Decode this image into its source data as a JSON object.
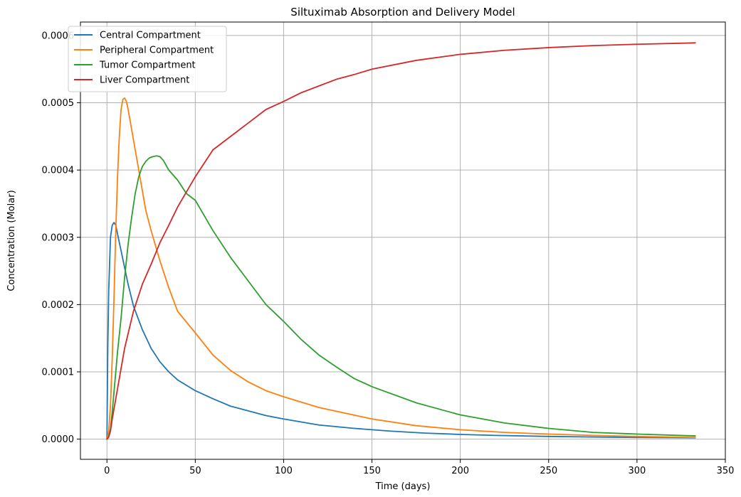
{
  "chart_data": {
    "type": "line",
    "title": "Siltuximab Absorption and Delivery Model",
    "xlabel": "Time (days)",
    "ylabel": "Concentration (Molar)",
    "xlim": [
      -15,
      350
    ],
    "ylim": [
      -3e-05,
      0.00062
    ],
    "xticks": [
      0,
      50,
      100,
      150,
      200,
      250,
      300,
      350
    ],
    "xtick_labels": [
      "0",
      "50",
      "100",
      "150",
      "200",
      "250",
      "300",
      "350"
    ],
    "yticks": [
      0,
      0.0001,
      0.0002,
      0.0003,
      0.0004,
      0.0005,
      0.0006
    ],
    "ytick_labels": [
      "0.0000",
      "0.0001",
      "0.0002",
      "0.0003",
      "0.0004",
      "0.0005",
      "0.0006"
    ],
    "grid": true,
    "legend_position": "top-left",
    "series": [
      {
        "name": "Central Compartment",
        "color": "#1f77b4",
        "x": [
          0,
          0.5,
          1,
          2,
          3,
          4,
          5,
          6,
          8,
          10,
          12,
          15,
          20,
          25,
          30,
          35,
          40,
          50,
          60,
          70,
          80,
          90,
          100,
          120,
          140,
          160,
          180,
          200,
          220,
          250,
          280,
          300,
          333
        ],
        "y": [
          0,
          0.00014,
          0.00022,
          0.0003,
          0.000318,
          0.000322,
          0.000318,
          0.000305,
          0.00028,
          0.000255,
          0.00023,
          0.000198,
          0.000163,
          0.000135,
          0.000115,
          0.0001,
          8.8e-05,
          7.2e-05,
          6e-05,
          4.9e-05,
          4.2e-05,
          3.5e-05,
          3e-05,
          2.1e-05,
          1.6e-05,
          1.2e-05,
          9e-06,
          7e-06,
          5.5e-06,
          4e-06,
          3e-06,
          2.5e-06,
          2e-06
        ]
      },
      {
        "name": "Peripheral Compartment",
        "color": "#ff7f0e",
        "x": [
          0,
          1,
          2,
          3,
          4,
          5,
          6,
          7,
          8,
          9,
          10,
          11,
          12,
          14,
          16,
          18,
          20,
          22,
          25,
          30,
          35,
          40,
          50,
          60,
          70,
          80,
          90,
          100,
          120,
          150,
          175,
          200,
          225,
          250,
          275,
          300,
          333
        ],
        "y": [
          0,
          1.2e-05,
          5e-05,
          0.00012,
          0.00021,
          0.00031,
          0.00039,
          0.00045,
          0.00049,
          0.000505,
          0.000507,
          0.000502,
          0.00049,
          0.00046,
          0.00043,
          0.0004,
          0.00037,
          0.00034,
          0.00031,
          0.000265,
          0.000225,
          0.00019,
          0.000158,
          0.000125,
          0.000102,
          8.5e-05,
          7.2e-05,
          6.3e-05,
          4.7e-05,
          3e-05,
          2e-05,
          1.4e-05,
          1e-05,
          7.5e-06,
          5.5e-06,
          4e-06,
          2.5e-06
        ]
      },
      {
        "name": "Tumor Compartment",
        "color": "#2ca02c",
        "x": [
          0,
          1,
          2,
          3,
          4,
          5,
          6,
          8,
          10,
          12,
          14,
          16,
          18,
          20,
          22,
          24,
          26,
          28,
          30,
          32,
          35,
          40,
          45,
          50,
          60,
          70,
          80,
          90,
          100,
          110,
          120,
          130,
          140,
          150,
          175,
          200,
          225,
          250,
          275,
          300,
          333
        ],
        "y": [
          0,
          4e-06,
          1.5e-05,
          4e-05,
          7e-05,
          0.0001,
          0.00013,
          0.00018,
          0.00024,
          0.00029,
          0.00033,
          0.000365,
          0.00039,
          0.000405,
          0.000413,
          0.000418,
          0.00042,
          0.000421,
          0.00042,
          0.000414,
          0.0004,
          0.000385,
          0.000365,
          0.000355,
          0.00031,
          0.00027,
          0.000235,
          0.0002,
          0.000175,
          0.000148,
          0.000125,
          0.000107,
          9e-05,
          7.8e-05,
          5.4e-05,
          3.6e-05,
          2.4e-05,
          1.6e-05,
          1e-05,
          7.5e-06,
          4.8e-06
        ]
      },
      {
        "name": "Liver Compartment",
        "color": "#d62728",
        "x": [
          0,
          1,
          2,
          3,
          5,
          7,
          10,
          15,
          20,
          25,
          30,
          35,
          40,
          50,
          60,
          70,
          80,
          90,
          100,
          110,
          120,
          130,
          140,
          150,
          175,
          200,
          225,
          250,
          275,
          300,
          333
        ],
        "y": [
          0,
          3e-06,
          1.2e-05,
          3e-05,
          6e-05,
          9e-05,
          0.000135,
          0.00019,
          0.00023,
          0.00026,
          0.000292,
          0.000318,
          0.000345,
          0.00039,
          0.00043,
          0.00045,
          0.00047,
          0.00049,
          0.000502,
          0.000515,
          0.000525,
          0.000535,
          0.000542,
          0.00055,
          0.000563,
          0.000572,
          0.000578,
          0.000582,
          0.000585,
          0.000587,
          0.000589
        ]
      }
    ]
  }
}
